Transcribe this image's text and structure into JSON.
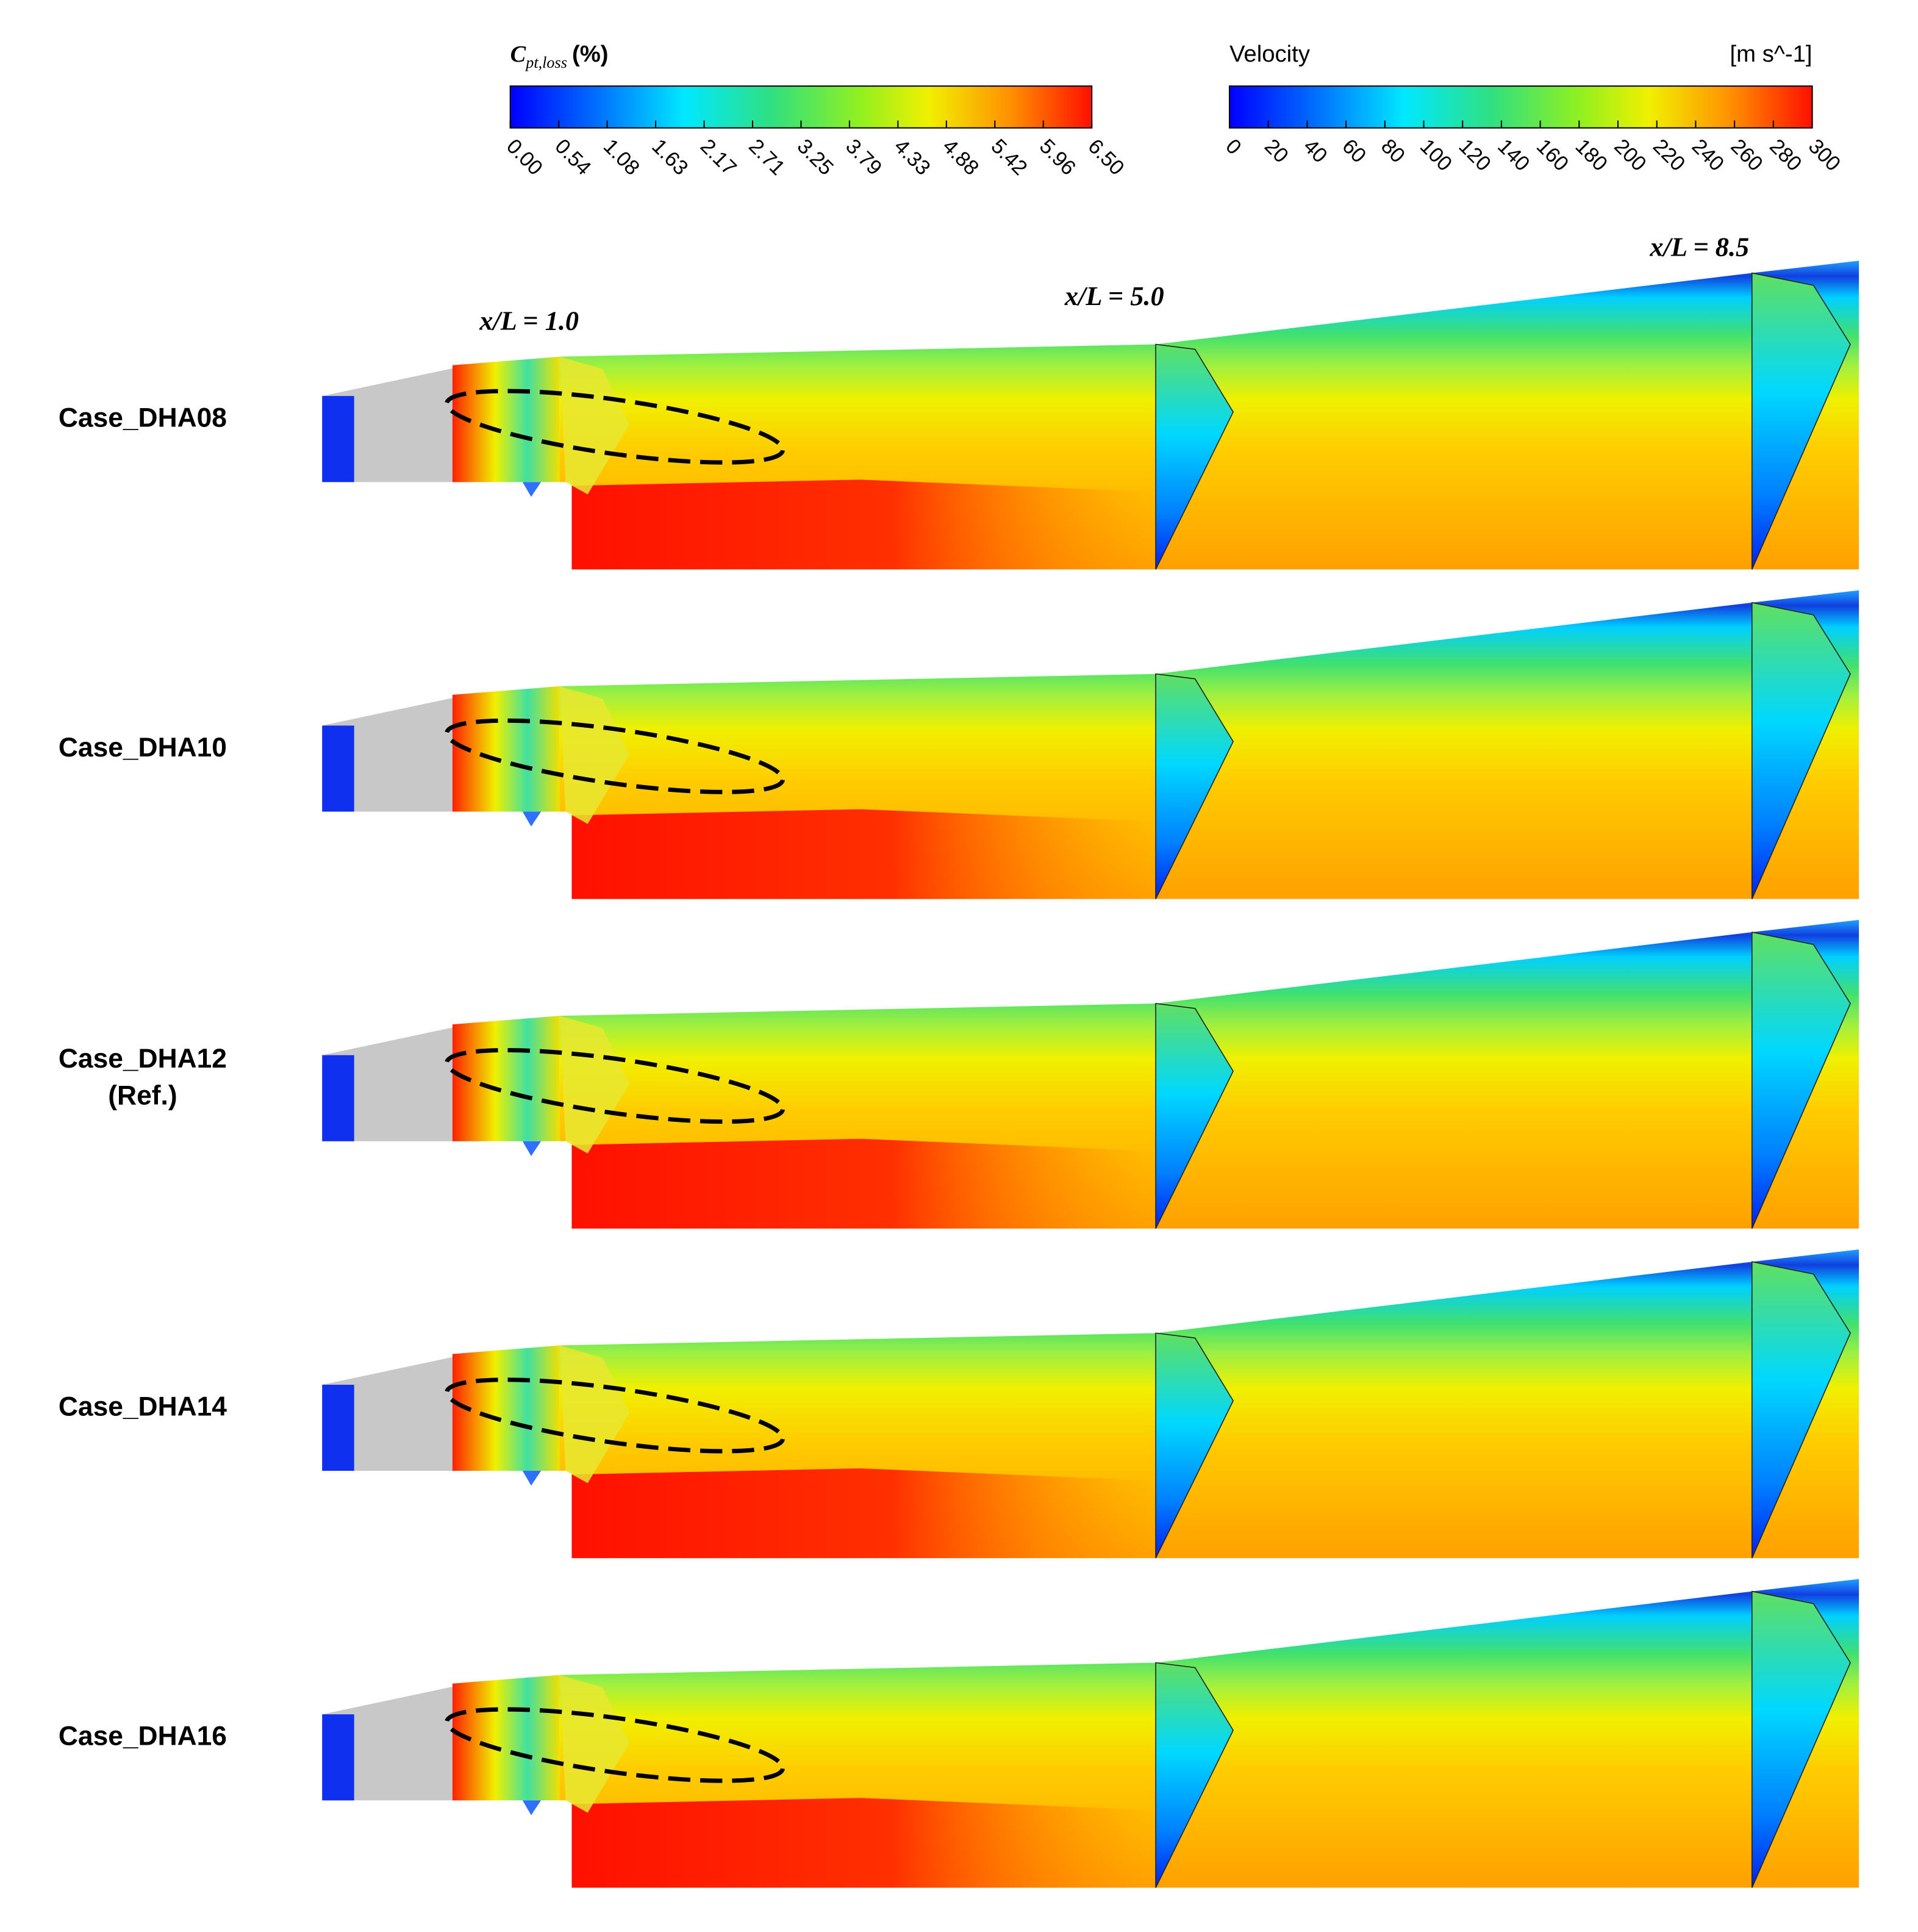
{
  "colorbars": [
    {
      "title": "C",
      "title_sub": "pt,loss",
      "title_unit": "(%)",
      "ticks": [
        "0.00",
        "0.54",
        "1.08",
        "1.63",
        "2.17",
        "2.71",
        "3.25",
        "3.79",
        "4.33",
        "4.88",
        "5.42",
        "5.96",
        "6.50"
      ]
    },
    {
      "title": "Velocity",
      "title_unit": "[m s^-1]",
      "ticks": [
        "0",
        "20",
        "40",
        "60",
        "80",
        "100",
        "120",
        "140",
        "160",
        "180",
        "200",
        "220",
        "240",
        "260",
        "280",
        "300"
      ]
    }
  ],
  "sections": [
    "x/L = 1.0",
    "x/L = 5.0",
    "x/L = 8.5"
  ],
  "cases": [
    {
      "label": "Case_DHA08"
    },
    {
      "label": "Case_DHA10"
    },
    {
      "label": "Case_DHA12",
      "note": "(Ref.)"
    },
    {
      "label": "Case_DHA14"
    },
    {
      "label": "Case_DHA16"
    }
  ]
}
